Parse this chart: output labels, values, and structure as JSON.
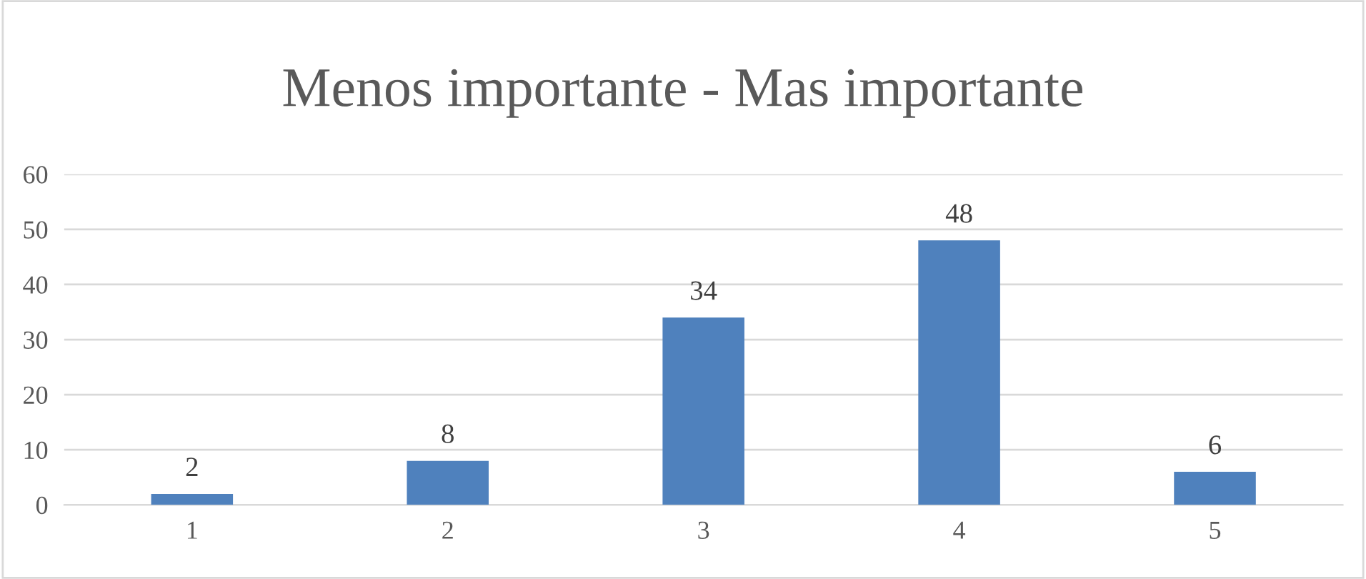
{
  "chart_data": {
    "type": "bar",
    "title": "Menos importante - Mas importante",
    "categories": [
      "1",
      "2",
      "3",
      "4",
      "5"
    ],
    "values": [
      2,
      8,
      34,
      48,
      6
    ],
    "color": "#4f81bd",
    "ylim": [
      0,
      60
    ],
    "yticks": [
      0,
      10,
      20,
      30,
      40,
      50,
      60
    ],
    "grid": "y",
    "data_labels": true,
    "legend": false
  }
}
